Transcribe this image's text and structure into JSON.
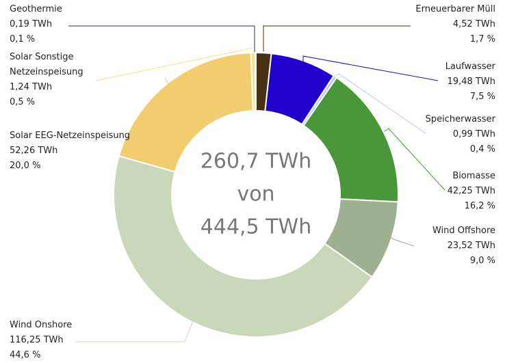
{
  "chart_data": {
    "type": "donut",
    "categories": [
      "Erneuerbarer Müll",
      "Laufwasser",
      "Speicherwasser",
      "Biomasse",
      "Wind Offshore",
      "Wind Onshore",
      "Solar EEG-Netzeinspeisung",
      "Solar Sonstige Netzeinspeisung",
      "Geothermie"
    ],
    "values": [
      4.52,
      19.48,
      0.99,
      42.25,
      23.52,
      116.25,
      52.26,
      1.24,
      0.19
    ],
    "value_labels": [
      "4,52 TWh",
      "19,48 TWh",
      "0,99 TWh",
      "42,25 TWh",
      "23,52 TWh",
      "116,25 TWh",
      "52,26 TWh",
      "1,24 TWh",
      "0,19 TWh"
    ],
    "percents": [
      1.7,
      7.5,
      0.4,
      16.2,
      9.0,
      44.6,
      20.0,
      0.5,
      0.1
    ],
    "percent_labels": [
      "1,7 %",
      "7,5 %",
      "0,4 %",
      "16,2 %",
      "9,0 %",
      "44,6 %",
      "20,0 %",
      "0,5 %",
      "0,1 %"
    ],
    "colors": [
      "#4a2f10",
      "#2200cc",
      "#b8c8f0",
      "#4a963a",
      "#9db090",
      "#c8d8b8",
      "#f2cd70",
      "#f8e080",
      "#2a2090"
    ],
    "center_text": [
      "260,7 TWh",
      "von",
      "444,5 TWh"
    ]
  }
}
